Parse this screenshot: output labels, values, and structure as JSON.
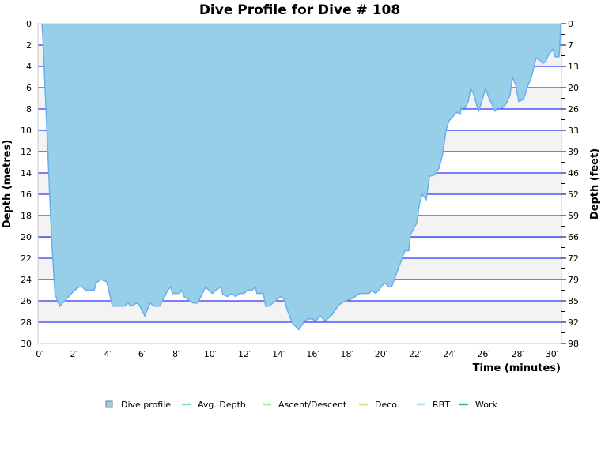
{
  "chart_data": {
    "type": "area",
    "title": "Dive Profile for Dive # 108",
    "xlabel": "Time (minutes)",
    "ylabel": "Depth (metres)",
    "ylabel_right": "Depth (feet)",
    "xlim": [
      0,
      30.6
    ],
    "ylim": [
      0,
      30
    ],
    "y_inverted": true,
    "x_ticks": [
      "0′",
      "2′",
      "4′",
      "6′",
      "8′",
      "10′",
      "12′",
      "14′",
      "16′",
      "18′",
      "20′",
      "22′",
      "24′",
      "26′",
      "28′",
      "30′"
    ],
    "y_ticks": [
      "0",
      "2",
      "4",
      "6",
      "8",
      "10",
      "12",
      "14",
      "16",
      "18",
      "20",
      "22",
      "24",
      "26",
      "28",
      "30"
    ],
    "y_ticks_right": [
      "0",
      "7",
      "13",
      "20",
      "26",
      "33",
      "39",
      "46",
      "52",
      "59",
      "66",
      "72",
      "79",
      "85",
      "92",
      "98"
    ],
    "grid": true,
    "legend_position": "bottom",
    "legend": [
      {
        "name": "Dive profile",
        "color": "#97cfe9",
        "marker": "square"
      },
      {
        "name": "Avg. Depth",
        "color": "#7fe0c0",
        "marker": "line"
      },
      {
        "name": "Ascent/Descent",
        "color": "#90ee90",
        "marker": "line"
      },
      {
        "name": "Deco.",
        "color": "#d8e070",
        "marker": "line"
      },
      {
        "name": "RBT",
        "color": "#a8dcf4",
        "marker": "line"
      },
      {
        "name": "Work",
        "color": "#2eb88a",
        "marker": "line"
      }
    ],
    "avg_depth": 20.1,
    "series": [
      {
        "name": "Dive profile",
        "color": "#97cfe9",
        "line_color": "#6aaeea",
        "x": [
          0.23,
          0.3,
          0.79,
          1.0,
          1.28,
          1.79,
          2.09,
          2.4,
          2.6,
          2.78,
          3.29,
          3.41,
          3.66,
          4.03,
          4.35,
          5.04,
          5.3,
          5.4,
          5.8,
          5.97,
          6.25,
          6.57,
          6.8,
          7.13,
          7.6,
          7.78,
          7.87,
          8.29,
          8.4,
          8.56,
          9.07,
          9.35,
          9.81,
          10.2,
          10.42,
          10.7,
          10.83,
          11.1,
          11.34,
          11.57,
          11.8,
          12.08,
          12.25,
          12.53,
          12.73,
          12.82,
          13.2,
          13.33,
          13.52,
          13.84,
          14.21,
          14.44,
          14.58,
          14.9,
          15.28,
          15.6,
          15.83,
          16.06,
          16.25,
          16.53,
          16.8,
          17.22,
          17.59,
          18.0,
          18.38,
          18.84,
          19.4,
          19.54,
          19.77,
          20.0,
          20.28,
          20.56,
          20.7,
          20.93,
          21.25,
          21.48,
          21.71,
          21.8,
          22.18,
          22.32,
          22.5,
          22.73,
          22.92,
          23.2,
          23.47,
          23.7,
          23.89,
          24.07,
          24.3,
          24.54,
          24.72,
          24.77,
          25.0,
          25.19,
          25.33,
          25.46,
          25.79,
          25.93,
          26.2,
          26.39,
          26.76,
          26.94,
          27.18,
          27.41,
          27.64,
          27.78,
          27.96,
          28.15,
          28.43,
          28.66,
          28.89,
          29.17,
          29.58,
          29.72,
          29.86,
          30.14,
          30.28,
          30.51,
          30.55,
          30.6
        ],
        "y": [
          0,
          1.7,
          20,
          25.4,
          26.5,
          25.6,
          25.1,
          24.7,
          24.7,
          25.0,
          25.0,
          24.3,
          24.0,
          24.2,
          26.5,
          26.5,
          26.2,
          26.5,
          26.2,
          26.5,
          27.4,
          26.2,
          26.5,
          26.5,
          25.0,
          24.7,
          25.3,
          25.3,
          25.0,
          25.6,
          26.2,
          26.2,
          24.7,
          25.3,
          25.0,
          24.7,
          25.4,
          25.6,
          25.3,
          25.6,
          25.3,
          25.3,
          25.0,
          25.0,
          24.7,
          25.3,
          25.3,
          26.5,
          26.5,
          26.1,
          25.6,
          25.9,
          26.8,
          28.1,
          28.7,
          27.9,
          27.7,
          27.7,
          27.9,
          27.4,
          27.9,
          27.3,
          26.4,
          26.0,
          25.8,
          25.3,
          25.3,
          25.0,
          25.3,
          24.9,
          24.3,
          24.7,
          24.7,
          23.7,
          22.3,
          21.3,
          21.3,
          19.8,
          18.7,
          17.0,
          16.0,
          16.5,
          14.3,
          14.2,
          13.6,
          12.2,
          10.0,
          9.1,
          8.7,
          8.3,
          8.5,
          7.8,
          7.9,
          7.3,
          6.1,
          6.4,
          8.2,
          7.6,
          6.1,
          6.9,
          8.2,
          7.8,
          7.9,
          7.5,
          6.7,
          5.0,
          5.7,
          7.3,
          7.1,
          5.9,
          5.0,
          3.2,
          3.7,
          3.6,
          3.0,
          2.4,
          3.1,
          3.1,
          2.0,
          0
        ]
      }
    ]
  }
}
